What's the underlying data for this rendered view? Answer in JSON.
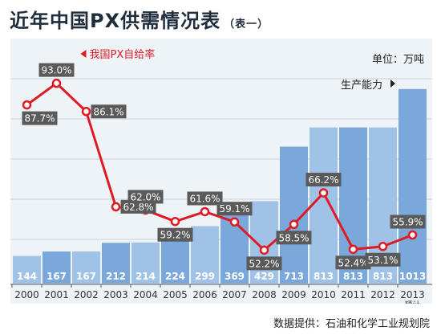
{
  "title": "近年中国PX供需情况表",
  "title_note": "（表一）",
  "source": "数据提供：石油和化学工业规划院",
  "chart_data": {
    "type": "bar",
    "categories": [
      "2000",
      "2001",
      "2002",
      "2003",
      "2004",
      "2005",
      "2006",
      "2007",
      "2008",
      "2009",
      "2010",
      "2011",
      "2012",
      "2013"
    ],
    "category_note": "预计",
    "unit_label": "单位：万吨",
    "series": [
      {
        "name": "生产能力",
        "type": "bar",
        "values": [
          144,
          167,
          167,
          212,
          214,
          224,
          299,
          369,
          429,
          713,
          813,
          813,
          813,
          1013
        ],
        "color": "#7aa9db"
      },
      {
        "name": "我国PX自给率",
        "type": "line",
        "values": [
          87.7,
          93.0,
          86.1,
          62.8,
          62.0,
          59.2,
          61.6,
          59.1,
          52.2,
          58.5,
          66.2,
          52.4,
          53.1,
          55.9
        ],
        "labels": [
          "87.7%",
          "93.0%",
          "86.1%",
          "62.8%",
          "62.0%",
          "59.2%",
          "61.6%",
          "59.1%",
          "52.2%",
          "58.5%",
          "66.2%",
          "52.4%",
          "53.1%",
          "55.9%"
        ],
        "color": "#e01a22"
      }
    ],
    "bar_ylim": [
      0,
      1100
    ],
    "line_ylim": [
      45,
      100
    ],
    "grid": true
  }
}
